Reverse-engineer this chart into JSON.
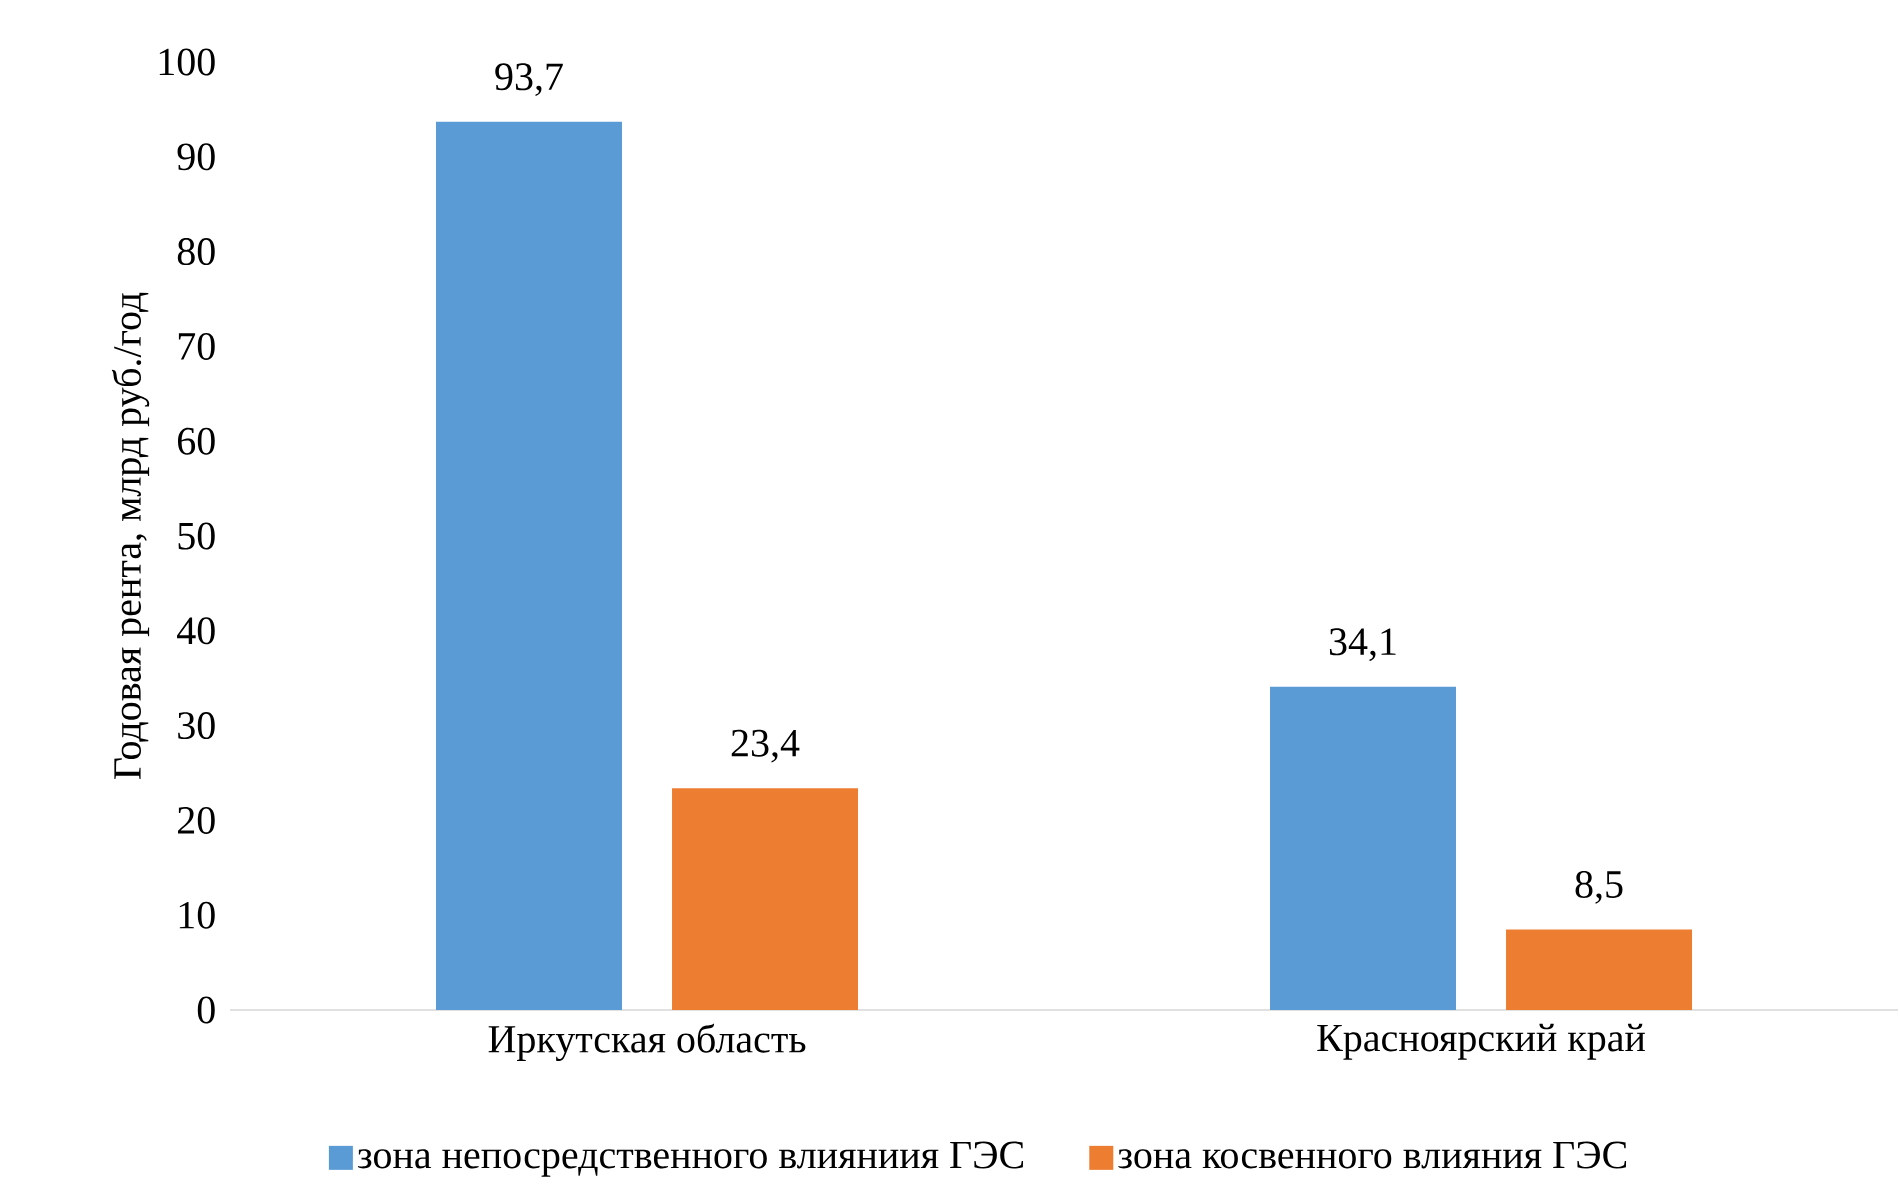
{
  "chart_data": {
    "type": "bar",
    "ylabel": "Годовая рента, млрд руб./год",
    "categories": [
      "Иркутская область",
      "Красноярский край"
    ],
    "series": [
      {
        "name": "зона непосредственного влияниия ГЭС",
        "color": "#5b9bd5",
        "values": [
          93.7,
          34.1
        ],
        "value_labels": [
          "93,7",
          "34,1"
        ]
      },
      {
        "name": "зона косвенного влияния ГЭС",
        "color": "#ed7d31",
        "values": [
          23.4,
          8.5
        ],
        "value_labels": [
          "23,4",
          "8,5"
        ]
      }
    ],
    "ylim": [
      0,
      100
    ],
    "yticks": [
      0,
      10,
      20,
      30,
      40,
      50,
      60,
      70,
      80,
      90,
      100
    ],
    "legend": "bottom"
  }
}
